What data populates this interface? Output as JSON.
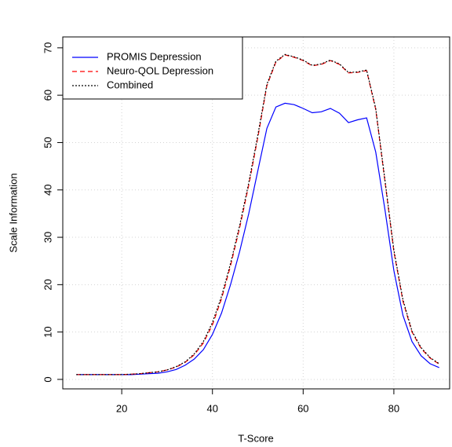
{
  "chart_data": {
    "type": "line",
    "x_label": "T-Score",
    "y_label": "Scale Information",
    "x": [
      10,
      12,
      14,
      16,
      18,
      20,
      22,
      24,
      26,
      28,
      30,
      32,
      34,
      36,
      38,
      40,
      42,
      44,
      46,
      48,
      50,
      52,
      54,
      56,
      58,
      60,
      62,
      64,
      66,
      68,
      70,
      72,
      74,
      76,
      78,
      80,
      82,
      84,
      86,
      88,
      90
    ],
    "series": [
      {
        "name": "PROMIS Depression",
        "color": "#0000ff",
        "dash": "solid",
        "values": [
          1,
          1,
          1,
          1,
          1,
          1,
          1,
          1.1,
          1.2,
          1.3,
          1.6,
          2.1,
          3,
          4.3,
          6.3,
          9.5,
          14,
          20,
          27,
          35,
          44,
          53,
          57.5,
          58.3,
          58,
          57.2,
          56.3,
          56.5,
          57.2,
          56.2,
          54.2,
          54.8,
          55.2,
          48,
          36,
          23,
          13.5,
          8,
          5,
          3.3,
          2.5
        ]
      },
      {
        "name": "Neuro-QOL Depression",
        "color": "#ff0000",
        "dash": "dashed",
        "values": [
          1,
          1,
          1,
          1,
          1,
          1,
          1.1,
          1.2,
          1.4,
          1.6,
          2,
          2.6,
          3.6,
          5.2,
          7.7,
          11.5,
          17,
          24,
          32,
          41,
          51,
          62,
          67,
          68.5,
          68,
          67.3,
          66.2,
          66.5,
          67.3,
          66.5,
          64.7,
          64.8,
          65.2,
          57,
          42,
          27,
          16.5,
          10,
          6.5,
          4.5,
          3.2
        ]
      },
      {
        "name": "Combined",
        "color": "#000000",
        "dash": "dotted",
        "values": [
          1,
          1,
          1,
          1,
          1,
          1,
          1.1,
          1.2,
          1.4,
          1.6,
          2,
          2.7,
          3.7,
          5.4,
          8,
          12,
          17.5,
          24.5,
          32.5,
          41.5,
          51.5,
          62.3,
          67.2,
          68.6,
          68.1,
          67.4,
          66.3,
          66.6,
          67.4,
          66.6,
          64.8,
          64.9,
          65.3,
          57.2,
          42.3,
          27.3,
          16.8,
          10.2,
          6.7,
          4.6,
          3.3
        ]
      }
    ],
    "xlim": [
      7,
      92.3
    ],
    "ylim": [
      -2,
      72.3
    ],
    "xticks": [
      20,
      40,
      60,
      80
    ],
    "yticks": [
      0,
      10,
      20,
      30,
      40,
      50,
      60,
      70
    ],
    "grid": true,
    "legend": "top-left"
  }
}
